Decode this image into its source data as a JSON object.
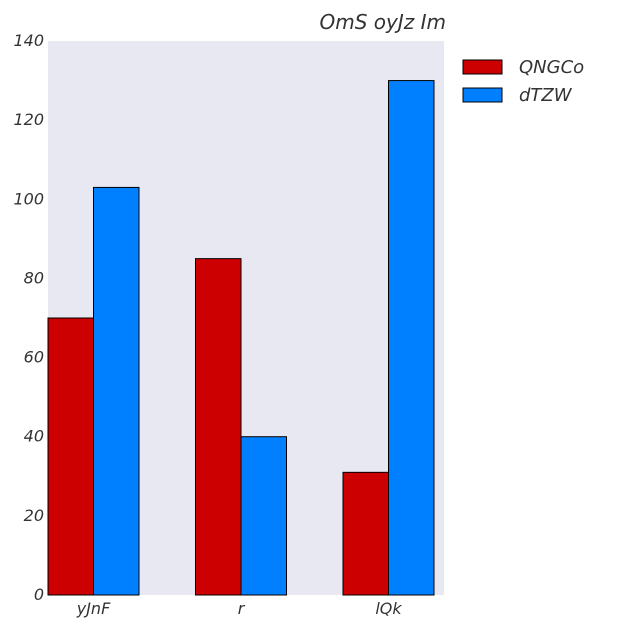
{
  "chart_data": {
    "type": "bar",
    "title": "OmS oyJz  Im",
    "categories": [
      "yJnF",
      "r",
      "lQk"
    ],
    "series": [
      {
        "name": "QNGCo",
        "values": [
          70,
          85,
          31
        ],
        "color": "#cc0000"
      },
      {
        "name": "dTZW",
        "values": [
          103,
          40,
          130
        ],
        "color": "#0080ff"
      }
    ],
    "ylim": [
      0,
      140
    ],
    "yticks": [
      0,
      20,
      40,
      60,
      80,
      100,
      120,
      140
    ],
    "xlabel": "",
    "ylabel": "",
    "grid": false,
    "legend_position": "outside-top-right",
    "plot_background": "#e8e8f2"
  }
}
